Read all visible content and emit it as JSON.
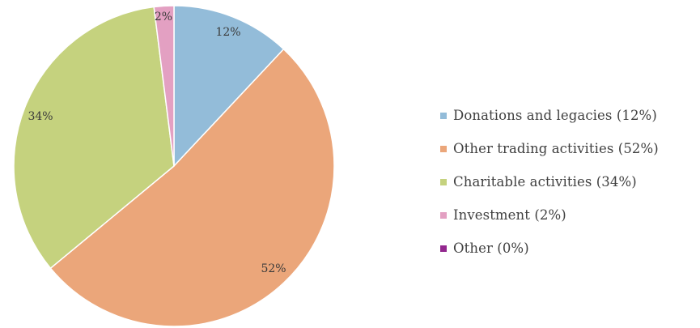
{
  "chart_data": {
    "type": "pie",
    "slices": [
      {
        "label": "Donations and legacies (12%)",
        "value": 12,
        "data_label": "12%",
        "color": "#93bcd9"
      },
      {
        "label": "Other trading activities (52%)",
        "value": 52,
        "data_label": "52%",
        "color": "#eba67a"
      },
      {
        "label": "Charitable activities (34%)",
        "value": 34,
        "data_label": "34%",
        "color": "#c5d27e"
      },
      {
        "label": "Investment (2%)",
        "value": 2,
        "data_label": "2%",
        "color": "#e3a0c2"
      },
      {
        "label": "Other (0%)",
        "value": 0,
        "data_label": "",
        "color": "#93288e"
      }
    ],
    "legend_position": "right",
    "start": "top, clockwise"
  }
}
